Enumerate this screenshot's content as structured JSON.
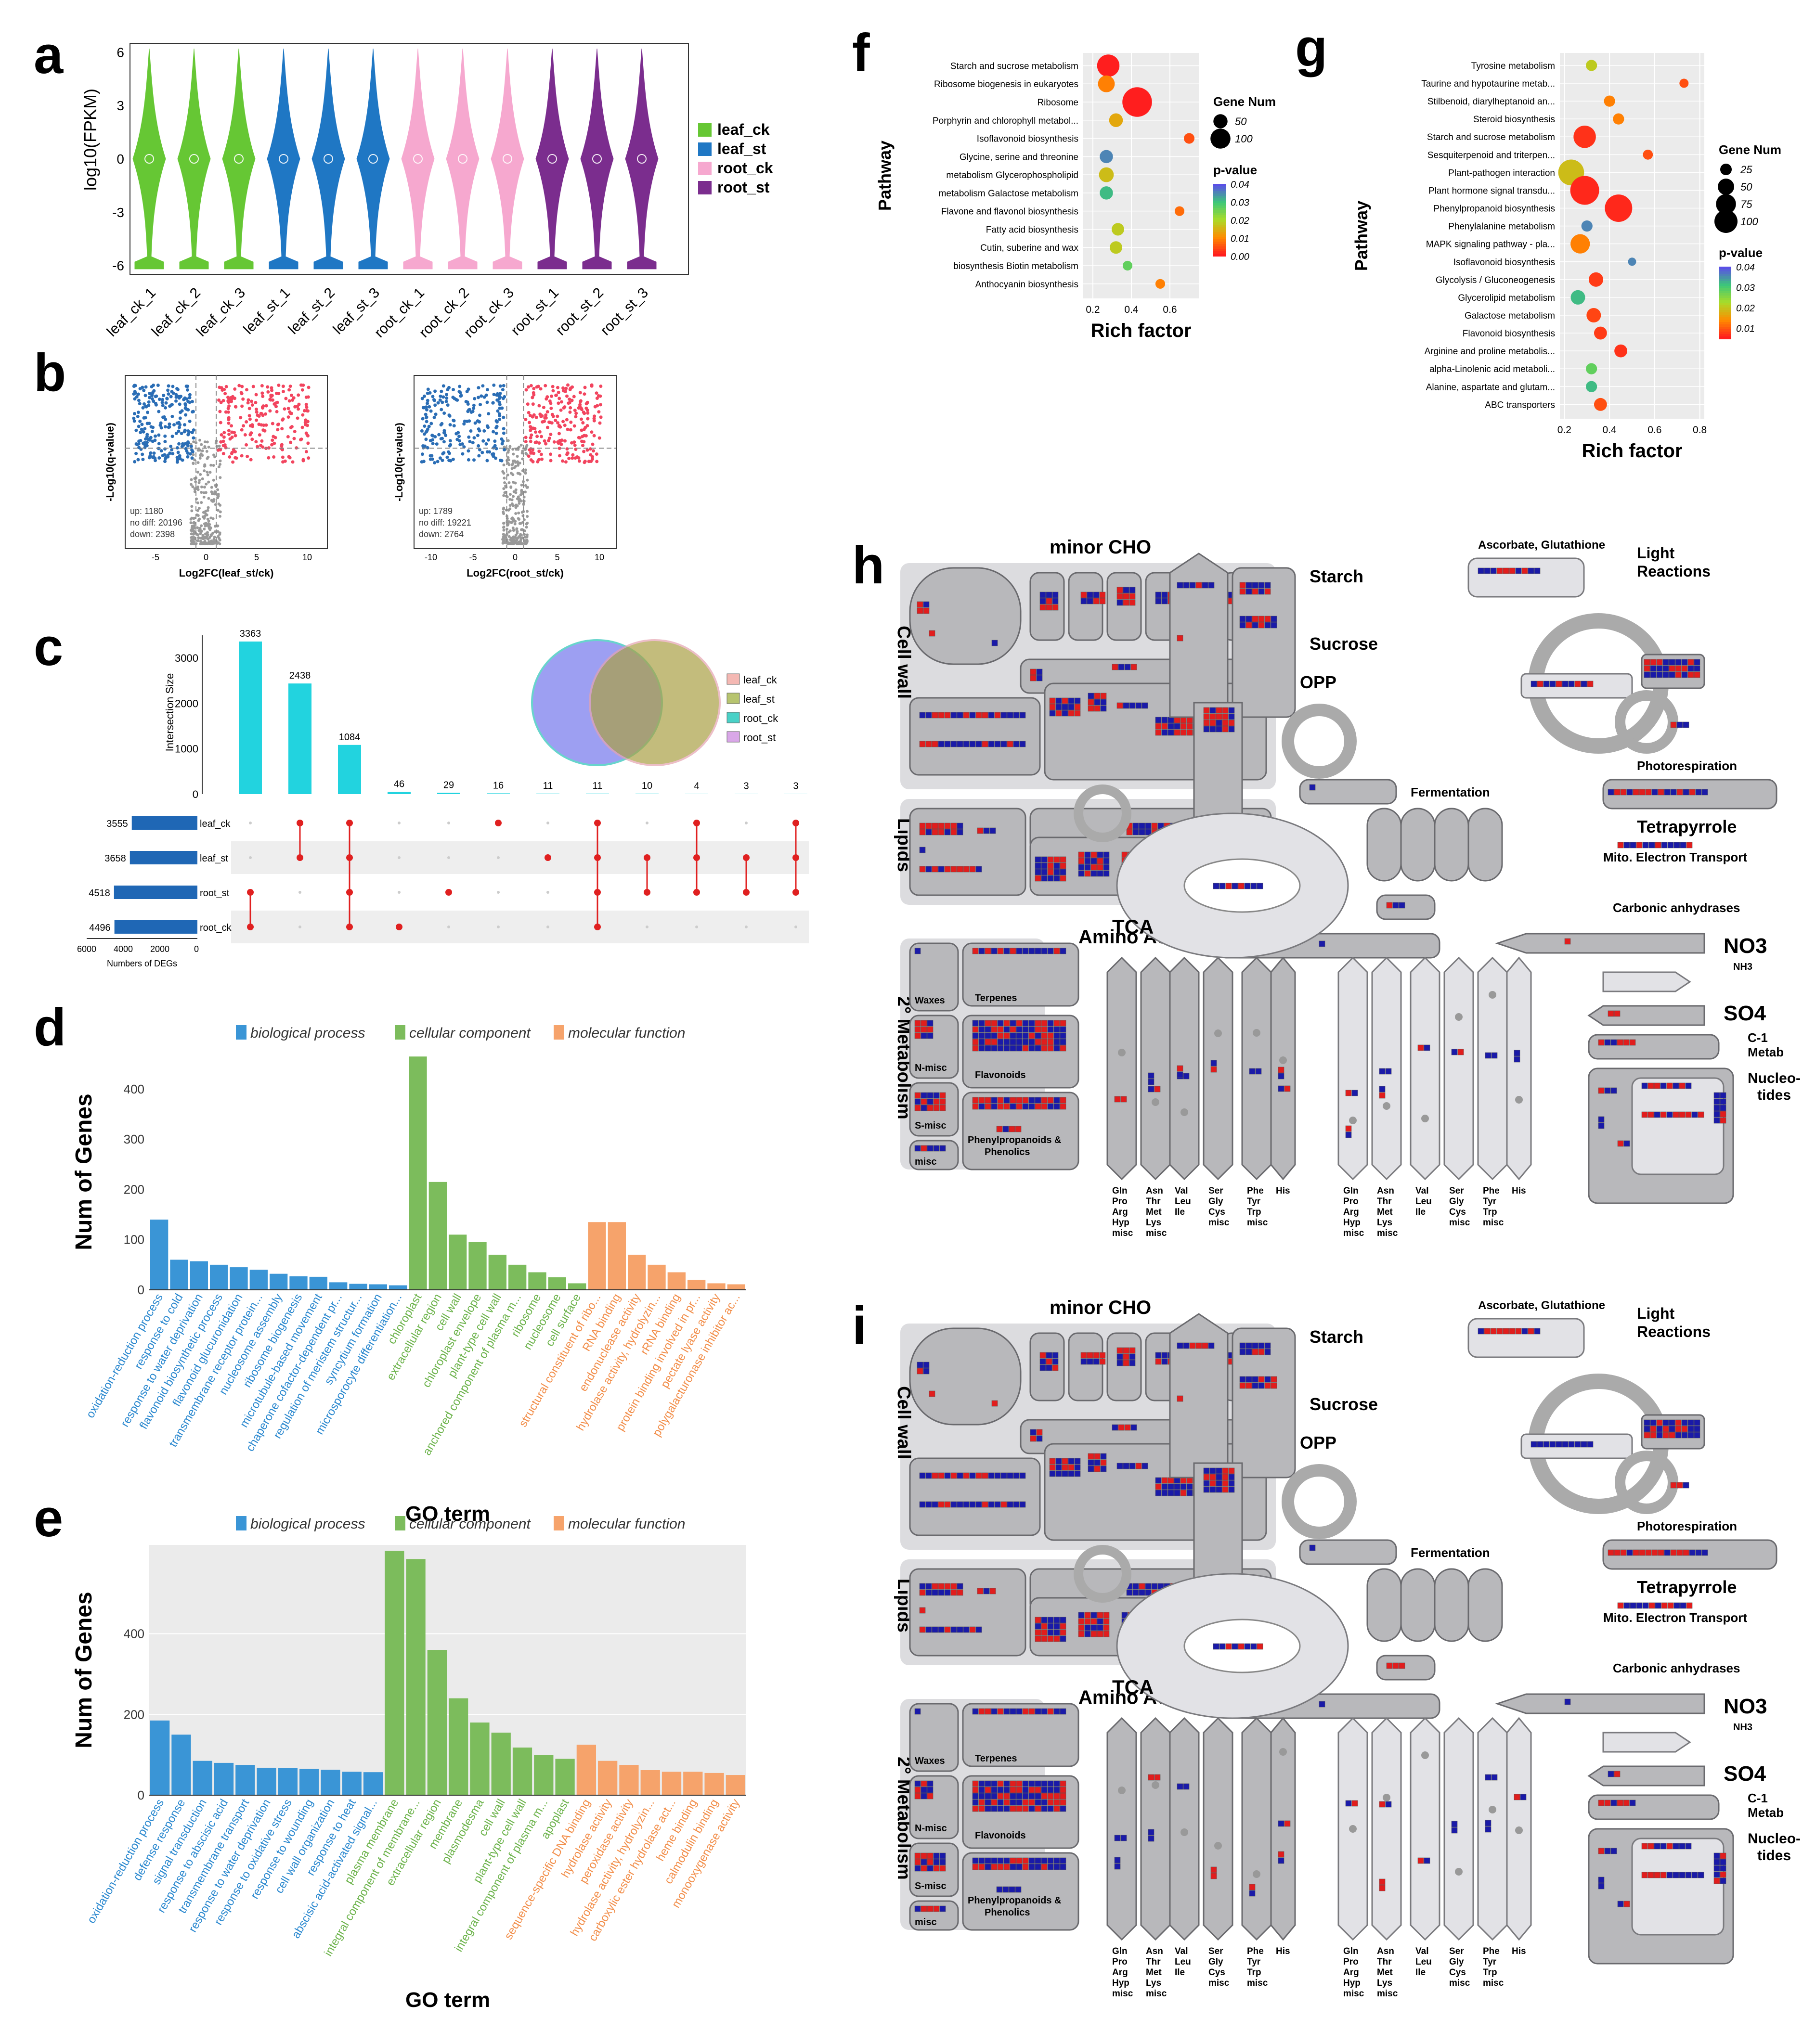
{
  "panels": {
    "a": "a",
    "b": "b",
    "c": "c",
    "d": "d",
    "e": "e",
    "f": "f",
    "g": "g",
    "h": "h",
    "i": "i"
  },
  "panel_a": {
    "ylabel": "log10(FPKM)",
    "yticks": [
      "6",
      "3",
      "0",
      "-3",
      "-6"
    ],
    "samples": [
      "leaf_ck_1",
      "leaf_ck_2",
      "leaf_ck_3",
      "leaf_st_1",
      "leaf_st_2",
      "leaf_st_3",
      "root_ck_1",
      "root_ck_2",
      "root_ck_3",
      "root_st_1",
      "root_st_2",
      "root_st_3"
    ],
    "legend": [
      {
        "name": "leaf_ck",
        "color": "#66c734"
      },
      {
        "name": "leaf_st",
        "color": "#1f77c4"
      },
      {
        "name": "root_ck",
        "color": "#f6a8cf"
      },
      {
        "name": "root_st",
        "color": "#7b2d8e"
      }
    ]
  },
  "panel_b": {
    "left": {
      "xlabel": "Log2FC(leaf_st/ck)",
      "ylabel": "-Log10(q-value)",
      "up": "up: 1180",
      "nodiff": "no diff: 20196",
      "down": "down: 2398",
      "xticks": [
        "-5",
        "0",
        "5",
        "10"
      ]
    },
    "right": {
      "xlabel": "Log2FC(root_st/ck)",
      "ylabel": "-Log10(q-value)",
      "up": "up: 1789",
      "nodiff": "no diff: 19221",
      "down": "down: 2764",
      "xticks": [
        "-10",
        "-5",
        "0",
        "5",
        "10"
      ]
    }
  },
  "panel_c": {
    "ylabel": "Intersection Size",
    "yticks": [
      "3000",
      "2000",
      "1000",
      "0"
    ],
    "bars": [
      3363,
      2438,
      1084,
      46,
      29,
      16,
      11,
      11,
      10,
      4,
      3,
      3
    ],
    "sets": [
      {
        "name": "leaf_ck",
        "size": "3555"
      },
      {
        "name": "leaf_st",
        "size": "3658"
      },
      {
        "name": "root_st",
        "size": "4518"
      },
      {
        "name": "root_ck",
        "size": "4496"
      }
    ],
    "set_axis": [
      "6000",
      "4000",
      "2000",
      "0"
    ],
    "set_xlabel": "Numbers of DEGs",
    "venn_legend": [
      {
        "name": "leaf_ck",
        "color": "#f4b8b3"
      },
      {
        "name": "leaf_st",
        "color": "#b7c46f"
      },
      {
        "name": "root_ck",
        "color": "#49d1c7"
      },
      {
        "name": "root_st",
        "color": "#d9a7e8"
      }
    ]
  },
  "panel_d": {
    "legend": [
      "biological process",
      "cellular component",
      "molecular function"
    ],
    "ylabel": "Num of Genes",
    "xlabel": "GO term",
    "yticks": [
      "400",
      "300",
      "200",
      "100",
      "0"
    ],
    "bars": [
      {
        "term": "oxidation-reduction process",
        "value": 140,
        "cat": 0
      },
      {
        "term": "response to cold",
        "value": 60,
        "cat": 0
      },
      {
        "term": "response to water deprivation",
        "value": 57,
        "cat": 0
      },
      {
        "term": "flavonoid biosynthetic process",
        "value": 50,
        "cat": 0
      },
      {
        "term": "flavonoid glucuronidation",
        "value": 45,
        "cat": 0
      },
      {
        "term": "transmembrane receptor protein...",
        "value": 40,
        "cat": 0
      },
      {
        "term": "nucleosome assembly",
        "value": 32,
        "cat": 0
      },
      {
        "term": "ribosome biogenesis",
        "value": 27,
        "cat": 0
      },
      {
        "term": "microtubule-based movement",
        "value": 26,
        "cat": 0
      },
      {
        "term": "chaperone cofactor-dependent pr...",
        "value": 15,
        "cat": 0
      },
      {
        "term": "regulation of meristem structur...",
        "value": 12,
        "cat": 0
      },
      {
        "term": "syncytium formation",
        "value": 11,
        "cat": 0
      },
      {
        "term": "microsporocyte differentiation...",
        "value": 9,
        "cat": 0
      },
      {
        "term": "chloroplast",
        "value": 465,
        "cat": 1
      },
      {
        "term": "extracellular region",
        "value": 215,
        "cat": 1
      },
      {
        "term": "cell wall",
        "value": 110,
        "cat": 1
      },
      {
        "term": "chloroplast envelope",
        "value": 95,
        "cat": 1
      },
      {
        "term": "plant-type cell wall",
        "value": 70,
        "cat": 1
      },
      {
        "term": "anchored component of plasma m...",
        "value": 50,
        "cat": 1
      },
      {
        "term": "ribosome",
        "value": 35,
        "cat": 1
      },
      {
        "term": "nucleosome",
        "value": 25,
        "cat": 1
      },
      {
        "term": "cell surface",
        "value": 13,
        "cat": 1
      },
      {
        "term": "structural constituent of ribo...",
        "value": 135,
        "cat": 2
      },
      {
        "term": "RNA binding",
        "value": 135,
        "cat": 2
      },
      {
        "term": "endonuclease activity",
        "value": 70,
        "cat": 2
      },
      {
        "term": "hydrolase activity, hydrolyzin...",
        "value": 50,
        "cat": 2
      },
      {
        "term": "rRNA binding",
        "value": 35,
        "cat": 2
      },
      {
        "term": "protein binding involved in pr...",
        "value": 20,
        "cat": 2
      },
      {
        "term": "pectate lyase activity",
        "value": 13,
        "cat": 2
      },
      {
        "term": "polygalacturonase inhibitor ac...",
        "value": 11,
        "cat": 2
      }
    ]
  },
  "panel_e": {
    "legend": [
      "biological process",
      "cellular component",
      "molecular function"
    ],
    "ylabel": "Num of Genes",
    "xlabel": "GO term",
    "yticks": [
      "400",
      "200",
      "0"
    ],
    "bars": [
      {
        "term": "oxidation-reduction process",
        "value": 185,
        "cat": 0
      },
      {
        "term": "defense response",
        "value": 150,
        "cat": 0
      },
      {
        "term": "signal transduction",
        "value": 85,
        "cat": 0
      },
      {
        "term": "response to abscisic acid",
        "value": 80,
        "cat": 0
      },
      {
        "term": "transmembrane transport",
        "value": 75,
        "cat": 0
      },
      {
        "term": "response to water deprivation",
        "value": 68,
        "cat": 0
      },
      {
        "term": "response to oxidative stress",
        "value": 67,
        "cat": 0
      },
      {
        "term": "response to wounding",
        "value": 65,
        "cat": 0
      },
      {
        "term": "cell wall organization",
        "value": 63,
        "cat": 0
      },
      {
        "term": "response to heat",
        "value": 58,
        "cat": 0
      },
      {
        "term": "abscisic acid-activated signal...",
        "value": 57,
        "cat": 0
      },
      {
        "term": "plasma membrane",
        "value": 605,
        "cat": 1
      },
      {
        "term": "integral component of membrane...",
        "value": 585,
        "cat": 1
      },
      {
        "term": "extracellular region",
        "value": 360,
        "cat": 1
      },
      {
        "term": "membrane",
        "value": 240,
        "cat": 1
      },
      {
        "term": "plasmodesma",
        "value": 180,
        "cat": 1
      },
      {
        "term": "cell wall",
        "value": 155,
        "cat": 1
      },
      {
        "term": "plant-type cell wall",
        "value": 118,
        "cat": 1
      },
      {
        "term": "integral component of plasma m...",
        "value": 100,
        "cat": 1
      },
      {
        "term": "apoplast",
        "value": 90,
        "cat": 1
      },
      {
        "term": "sequence-specific DNA binding",
        "value": 125,
        "cat": 2
      },
      {
        "term": "hydrolase activity",
        "value": 85,
        "cat": 2
      },
      {
        "term": "peroxidase activity",
        "value": 75,
        "cat": 2
      },
      {
        "term": "hydrolase activity, hydrolyzin...",
        "value": 62,
        "cat": 2
      },
      {
        "term": "carboxylic ester hydrolase act...",
        "value": 58,
        "cat": 2
      },
      {
        "term": "heme binding",
        "value": 58,
        "cat": 2
      },
      {
        "term": "calmodulin binding",
        "value": 55,
        "cat": 2
      },
      {
        "term": "monooxygenase activity",
        "value": 50,
        "cat": 2
      }
    ]
  },
  "panel_f": {
    "ylabel": "Pathway",
    "xlabel": "Rich factor",
    "xticks": [
      "0.2",
      "0.4",
      "0.6"
    ],
    "size_legend_title": "Gene Num",
    "size_legend": [
      "50",
      "100"
    ],
    "p_legend_title": "p-value",
    "p_ticks": [
      "0.04",
      "0.03",
      "0.02",
      "0.01",
      "0.00"
    ],
    "pathways": [
      {
        "name": "Starch and sucrose metabolism",
        "x": 0.28,
        "n": 80,
        "p": 0.0
      },
      {
        "name": "Ribosome biogenesis in eukaryotes",
        "x": 0.27,
        "n": 45,
        "p": 0.01
      },
      {
        "name": "Ribosome",
        "x": 0.43,
        "n": 140,
        "p": 0.0
      },
      {
        "name": "Porphyrin and chlorophyll metabol...",
        "x": 0.32,
        "n": 30,
        "p": 0.015
      },
      {
        "name": "Isoflavonoid biosynthesis",
        "x": 0.7,
        "n": 18,
        "p": 0.005
      },
      {
        "name": "Glycine, serine and threonine",
        "x": 0.27,
        "n": 28,
        "p": 0.04
      },
      {
        "name": "metabolism Glycerophospholipid",
        "x": 0.27,
        "n": 35,
        "p": 0.018
      },
      {
        "name": "metabolism Galactose metabolism",
        "x": 0.27,
        "n": 28,
        "p": 0.035
      },
      {
        "name": "Flavone and flavonol biosynthesis",
        "x": 0.65,
        "n": 15,
        "p": 0.008
      },
      {
        "name": "Fatty acid biosynthesis",
        "x": 0.33,
        "n": 25,
        "p": 0.02
      },
      {
        "name": "Cutin, suberine and wax",
        "x": 0.32,
        "n": 25,
        "p": 0.02
      },
      {
        "name": "biosynthesis Biotin metabolism",
        "x": 0.38,
        "n": 15,
        "p": 0.03
      },
      {
        "name": "Anthocyanin biosynthesis",
        "x": 0.55,
        "n": 15,
        "p": 0.01
      }
    ]
  },
  "panel_g": {
    "ylabel": "Pathway",
    "xlabel": "Rich factor",
    "xticks": [
      "0.2",
      "0.4",
      "0.6",
      "0.8"
    ],
    "size_legend_title": "Gene Num",
    "size_legend": [
      "25",
      "50",
      "75",
      "100"
    ],
    "p_legend_title": "p-value",
    "p_ticks": [
      "0.04",
      "0.03",
      "0.02",
      "0.01"
    ],
    "pathways": [
      {
        "name": "Tyrosine metabolism",
        "x": 0.32,
        "n": 15,
        "p": 0.02
      },
      {
        "name": "Taurine and hypotaurine metab...",
        "x": 0.73,
        "n": 10,
        "p": 0.005
      },
      {
        "name": "Stilbenoid, diarylheptanoid an...",
        "x": 0.4,
        "n": 15,
        "p": 0.01
      },
      {
        "name": "Steroid biosynthesis",
        "x": 0.44,
        "n": 15,
        "p": 0.01
      },
      {
        "name": "Starch and sucrose metabolism",
        "x": 0.29,
        "n": 60,
        "p": 0.002
      },
      {
        "name": "Sesquiterpenoid and triterpen...",
        "x": 0.57,
        "n": 12,
        "p": 0.005
      },
      {
        "name": "Plant-pathogen interaction",
        "x": 0.23,
        "n": 80,
        "p": 0.018
      },
      {
        "name": "Plant hormone signal transdu...",
        "x": 0.29,
        "n": 100,
        "p": 0.001
      },
      {
        "name": "Phenylpropanoid biosynthesis",
        "x": 0.44,
        "n": 90,
        "p": 0.001
      },
      {
        "name": "Phenylalanine metabolism",
        "x": 0.3,
        "n": 15,
        "p": 0.04
      },
      {
        "name": "MAPK signaling pathway - pla...",
        "x": 0.27,
        "n": 45,
        "p": 0.01
      },
      {
        "name": "Isoflavonoid biosynthesis",
        "x": 0.5,
        "n": 8,
        "p": 0.04
      },
      {
        "name": "Glycolysis / Gluconeogenesis",
        "x": 0.34,
        "n": 25,
        "p": 0.003
      },
      {
        "name": "Glycerolipid metabolism",
        "x": 0.26,
        "n": 25,
        "p": 0.035
      },
      {
        "name": "Galactose metabolism",
        "x": 0.33,
        "n": 25,
        "p": 0.004
      },
      {
        "name": "Flavonoid biosynthesis",
        "x": 0.36,
        "n": 20,
        "p": 0.003
      },
      {
        "name": "Arginine and proline metabolis...",
        "x": 0.45,
        "n": 20,
        "p": 0.002
      },
      {
        "name": "alpha-Linolenic acid metaboli...",
        "x": 0.32,
        "n": 15,
        "p": 0.03
      },
      {
        "name": "Alanine, aspartate and glutam...",
        "x": 0.32,
        "n": 15,
        "p": 0.035
      },
      {
        "name": "ABC transporters",
        "x": 0.36,
        "n": 20,
        "p": 0.005
      }
    ]
  },
  "mapman": {
    "minor_cho": "minor CHO",
    "cell_wall": "Cell wall",
    "lipids": "Lipids",
    "starch": "Starch",
    "sucrose": "Sucrose",
    "opp": "OPP",
    "fermentation": "Fermentation",
    "tca": "TCA",
    "asc": "Ascorbate, Glutathione",
    "light1": "Light",
    "light2": "Reactions",
    "photoresp": "Photorespiration",
    "tetra": "Tetrapyrrole",
    "mito": "Mito. Electron Transport",
    "carbonic": "Carbonic anhydrases",
    "amino": "Amino Acids",
    "secondary": "2° Metabolism",
    "no3": "NO3",
    "nh3": "NH3",
    "so4": "SO4",
    "c1a": "C-1",
    "c1b": "Metab",
    "nucleo1": "Nucleo-",
    "nucleo2": "tides",
    "waxes": "Waxes",
    "terpenes": "Terpenes",
    "flavonoids": "Flavonoids",
    "nmisc": "N-misc",
    "smisc": "S-misc",
    "misc": "misc",
    "phenyl1": "Phenylpropanoids &",
    "phenyl2": "Phenolics",
    "aa_groups": [
      [
        "Gln",
        "Pro",
        "Arg",
        "Hyp",
        "misc"
      ],
      [
        "Asn",
        "Thr",
        "Met",
        "Lys",
        "misc"
      ],
      [
        "Val",
        "Leu",
        "Ile"
      ],
      [
        "Ser",
        "Gly",
        "Cys",
        "misc"
      ],
      [
        "Phe",
        "Tyr",
        "Trp",
        "misc"
      ],
      [
        "His"
      ]
    ]
  }
}
